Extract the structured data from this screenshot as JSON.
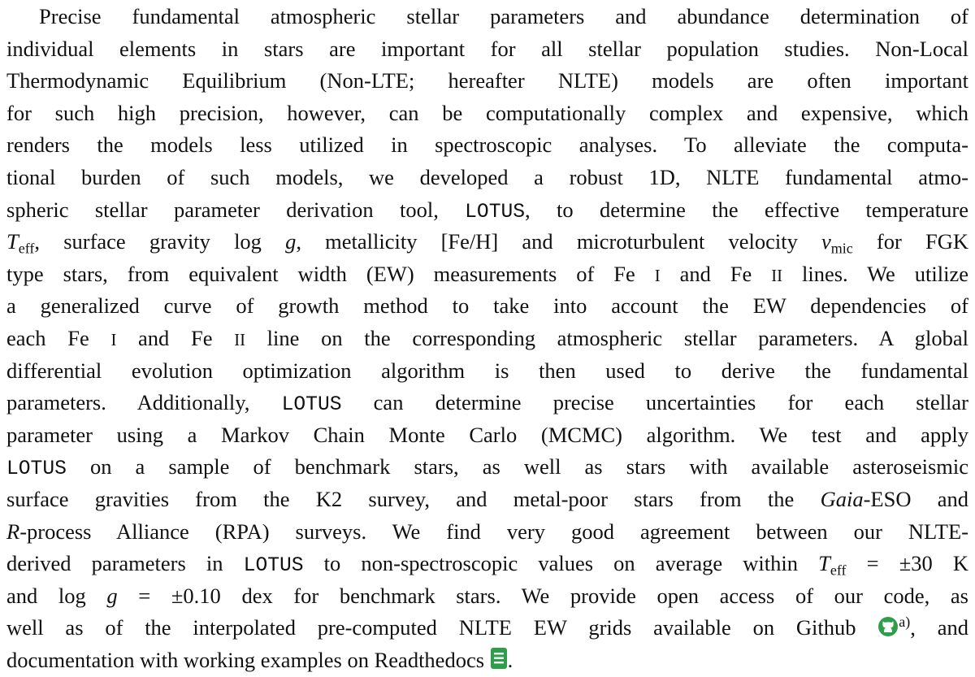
{
  "lines": [
    [
      "Precise fundamental atmospheric stellar parameters and abundance determination of"
    ],
    [
      "individual elements in stars are important for all stellar population studies. Non-Local"
    ],
    [
      "Thermodynamic Equilibrium (Non-LTE; hereafter NLTE) models are often important"
    ],
    [
      "for such high precision, however, can be computationally complex and expensive, which"
    ],
    [
      "renders the models less utilized in spectroscopic analyses. To alleviate the computa-"
    ],
    [
      "tional burden of such models, we developed a robust 1D, NLTE fundamental atmo-"
    ],
    [
      "spheric stellar parameter derivation tool, ",
      {
        "text": "LOTUS",
        "style": "m"
      },
      ", to determine the effective temperature"
    ],
    [
      {
        "text": "T",
        "style": "i"
      },
      {
        "text": "eff",
        "style": "sub"
      },
      ", surface gravity log ",
      {
        "text": "g",
        "style": "i"
      },
      ", metallicity [Fe/H] and microturbulent velocity ",
      {
        "text": "v",
        "style": "i"
      },
      {
        "text": "mic",
        "style": "sub"
      },
      " for FGK"
    ],
    [
      "type stars, from equivalent width (EW) measurements of Fe ",
      {
        "text": "I",
        "style": "sc"
      },
      " and Fe ",
      {
        "text": "II",
        "style": "sc"
      },
      " lines. We utilize"
    ],
    [
      "a generalized curve of growth method to take into account the EW dependencies of"
    ],
    [
      "each Fe ",
      {
        "text": "I",
        "style": "sc"
      },
      " and Fe ",
      {
        "text": "II",
        "style": "sc"
      },
      " line on the corresponding atmospheric stellar parameters. A global"
    ],
    [
      "differential evolution optimization algorithm is then used to derive the fundamental"
    ],
    [
      "parameters. Additionally, ",
      {
        "text": "LOTUS",
        "style": "m"
      },
      " can determine precise uncertainties for each stellar"
    ],
    [
      "parameter using a Markov Chain Monte Carlo (MCMC) algorithm. We test and apply"
    ],
    [
      {
        "text": "LOTUS",
        "style": "m"
      },
      " on a sample of benchmark stars, as well as stars with available asteroseismic"
    ],
    [
      "surface gravities from the K2 survey, and metal-poor stars from the ",
      {
        "text": "Gaia",
        "style": "i"
      },
      "-ESO and"
    ],
    [
      {
        "text": "R",
        "style": "i"
      },
      "-process Alliance (RPA) surveys. We find very good agreement between our NLTE-"
    ],
    [
      "derived parameters in ",
      {
        "text": "LOTUS",
        "style": "m"
      },
      " to non-spectroscopic values on average within ",
      {
        "text": "T",
        "style": "i"
      },
      {
        "text": "eff",
        "style": "sub"
      },
      " = ±30 K"
    ],
    [
      "and log ",
      {
        "text": "g",
        "style": "i"
      },
      " = ±0.10 dex for benchmark stars. We provide open access of our code, as"
    ],
    [
      "well as of the interpolated pre-computed NLTE EW grids available on Github ",
      {
        "icon": "github"
      },
      {
        "text": "a)",
        "style": "sup"
      },
      ", and"
    ],
    [
      "documentation with working examples on Readthedocs ",
      {
        "icon": "readthedocs"
      },
      "."
    ]
  ]
}
